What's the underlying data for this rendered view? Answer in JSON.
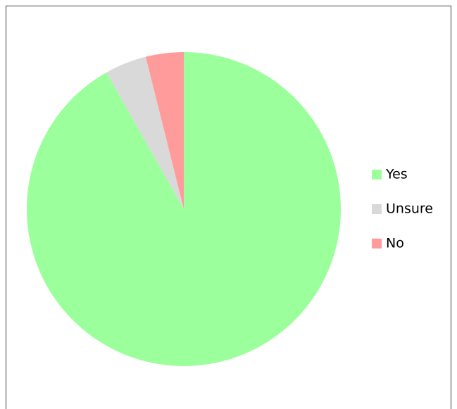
{
  "chart_data": {
    "type": "pie",
    "categories": [
      "Yes",
      "Unsure",
      "No"
    ],
    "values": [
      91.8,
      4.3,
      3.9
    ],
    "colors": [
      "#9bff9b",
      "#d9d9d9",
      "#ff9b9b"
    ],
    "legend": "right"
  }
}
